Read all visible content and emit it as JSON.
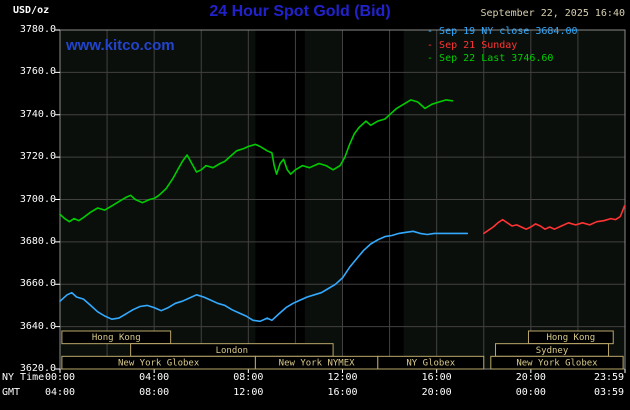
{
  "header": {
    "units_label": "USD/oz",
    "title": "24 Hour Spot Gold (Bid)",
    "datetime": "September 22, 2025 16:40",
    "watermark": "www.kitco.com"
  },
  "legend": [
    {
      "marker": "-",
      "label": "Sep 19 NY close 3684.00",
      "color": "#33aaff"
    },
    {
      "marker": "-",
      "label": "Sep 21 Sunday",
      "color": "#ff3333"
    },
    {
      "marker": "-",
      "label": "Sep 22 Last 3746.60",
      "color": "#00cc00"
    }
  ],
  "axes": {
    "y_ticks": [
      "3780.0",
      "3760.0",
      "3740.0",
      "3720.0",
      "3700.0",
      "3680.0",
      "3660.0",
      "3640.0",
      "3620.0"
    ],
    "tick_hours": [
      0,
      4,
      8,
      12,
      16,
      20,
      24
    ],
    "x_rows": [
      {
        "label": "NY Time",
        "ticks": [
          "00:00",
          "04:00",
          "08:00",
          "12:00",
          "16:00",
          "20:00",
          "23:59"
        ]
      },
      {
        "label": "GMT",
        "ticks": [
          "04:00",
          "08:00",
          "12:00",
          "16:00",
          "20:00",
          "00:00",
          "03:59"
        ]
      }
    ]
  },
  "chart_data": {
    "type": "line",
    "title": "24 Hour Spot Gold (Bid)",
    "ylabel": "USD/oz",
    "x_unit": "hour (NY time)",
    "xlim": [
      0,
      24
    ],
    "ylim": [
      3620,
      3780
    ],
    "y_step": 20,
    "grid": true,
    "legend_position": "top-right",
    "series": [
      {
        "id": "sep19",
        "name": "Sep 19 NY close 3684.00",
        "color": "#33aaff",
        "points": [
          [
            0,
            3652
          ],
          [
            0.3,
            3655
          ],
          [
            0.5,
            3656
          ],
          [
            0.7,
            3654
          ],
          [
            1,
            3653
          ],
          [
            1.3,
            3650
          ],
          [
            1.6,
            3647
          ],
          [
            1.9,
            3645
          ],
          [
            2.2,
            3643.5
          ],
          [
            2.5,
            3644
          ],
          [
            2.8,
            3646
          ],
          [
            3.1,
            3648
          ],
          [
            3.4,
            3649.5
          ],
          [
            3.7,
            3650
          ],
          [
            4,
            3649
          ],
          [
            4.3,
            3647.5
          ],
          [
            4.6,
            3649
          ],
          [
            4.9,
            3651
          ],
          [
            5.2,
            3652
          ],
          [
            5.5,
            3653.5
          ],
          [
            5.8,
            3655
          ],
          [
            6.1,
            3654
          ],
          [
            6.4,
            3652.5
          ],
          [
            6.7,
            3651
          ],
          [
            7,
            3650
          ],
          [
            7.3,
            3648
          ],
          [
            7.6,
            3646.5
          ],
          [
            7.9,
            3645
          ],
          [
            8.2,
            3643
          ],
          [
            8.5,
            3642.5
          ],
          [
            8.8,
            3644
          ],
          [
            9,
            3643
          ],
          [
            9.3,
            3646
          ],
          [
            9.6,
            3649
          ],
          [
            9.9,
            3651
          ],
          [
            10.2,
            3652.5
          ],
          [
            10.5,
            3654
          ],
          [
            10.8,
            3655
          ],
          [
            11.1,
            3656
          ],
          [
            11.4,
            3658
          ],
          [
            11.7,
            3660
          ],
          [
            12,
            3663
          ],
          [
            12.3,
            3668
          ],
          [
            12.6,
            3672
          ],
          [
            12.9,
            3676
          ],
          [
            13.2,
            3679
          ],
          [
            13.5,
            3681
          ],
          [
            13.8,
            3682.5
          ],
          [
            14.1,
            3683
          ],
          [
            14.4,
            3684
          ],
          [
            14.7,
            3684.5
          ],
          [
            15,
            3685
          ],
          [
            15.3,
            3684
          ],
          [
            15.6,
            3683.5
          ],
          [
            15.9,
            3684
          ],
          [
            16.2,
            3684
          ],
          [
            16.5,
            3684
          ],
          [
            17,
            3684
          ],
          [
            17.3,
            3684
          ]
        ]
      },
      {
        "id": "sep21",
        "name": "Sep 21 Sunday",
        "color": "#ff3333",
        "points": [
          [
            18,
            3684
          ],
          [
            18.2,
            3685.5
          ],
          [
            18.4,
            3687
          ],
          [
            18.6,
            3689
          ],
          [
            18.8,
            3690.5
          ],
          [
            19,
            3689
          ],
          [
            19.2,
            3687.5
          ],
          [
            19.4,
            3688
          ],
          [
            19.6,
            3687
          ],
          [
            19.8,
            3686
          ],
          [
            20,
            3687
          ],
          [
            20.2,
            3688.5
          ],
          [
            20.4,
            3687.5
          ],
          [
            20.6,
            3686
          ],
          [
            20.8,
            3687
          ],
          [
            21,
            3686
          ],
          [
            21.3,
            3687.5
          ],
          [
            21.6,
            3689
          ],
          [
            21.9,
            3688
          ],
          [
            22.2,
            3689
          ],
          [
            22.5,
            3688
          ],
          [
            22.8,
            3689.5
          ],
          [
            23.1,
            3690
          ],
          [
            23.4,
            3691
          ],
          [
            23.6,
            3690.5
          ],
          [
            23.8,
            3692
          ],
          [
            23.98,
            3697
          ]
        ]
      },
      {
        "id": "sep22",
        "name": "Sep 22 Last 3746.60",
        "color": "#00cc00",
        "points": [
          [
            0,
            3693
          ],
          [
            0.2,
            3691
          ],
          [
            0.4,
            3689.5
          ],
          [
            0.6,
            3691
          ],
          [
            0.8,
            3690
          ],
          [
            1,
            3691.5
          ],
          [
            1.3,
            3694
          ],
          [
            1.6,
            3696
          ],
          [
            1.9,
            3695
          ],
          [
            2.2,
            3697
          ],
          [
            2.5,
            3699
          ],
          [
            2.8,
            3701
          ],
          [
            3,
            3702
          ],
          [
            3.2,
            3700
          ],
          [
            3.5,
            3698.5
          ],
          [
            3.8,
            3700
          ],
          [
            4,
            3700.5
          ],
          [
            4.2,
            3702
          ],
          [
            4.5,
            3705
          ],
          [
            4.8,
            3710
          ],
          [
            5,
            3714
          ],
          [
            5.2,
            3718
          ],
          [
            5.4,
            3721
          ],
          [
            5.6,
            3717
          ],
          [
            5.8,
            3713
          ],
          [
            6,
            3714
          ],
          [
            6.2,
            3716
          ],
          [
            6.5,
            3715
          ],
          [
            6.8,
            3717
          ],
          [
            7,
            3718
          ],
          [
            7.2,
            3720
          ],
          [
            7.5,
            3723
          ],
          [
            7.8,
            3724
          ],
          [
            8,
            3725
          ],
          [
            8.3,
            3726
          ],
          [
            8.5,
            3725
          ],
          [
            8.8,
            3723
          ],
          [
            9,
            3722
          ],
          [
            9.1,
            3716
          ],
          [
            9.2,
            3712
          ],
          [
            9.35,
            3717
          ],
          [
            9.5,
            3719
          ],
          [
            9.65,
            3714
          ],
          [
            9.8,
            3712
          ],
          [
            10,
            3714
          ],
          [
            10.3,
            3716
          ],
          [
            10.6,
            3715
          ],
          [
            11,
            3717
          ],
          [
            11.3,
            3716
          ],
          [
            11.6,
            3714
          ],
          [
            11.9,
            3716
          ],
          [
            12.1,
            3720
          ],
          [
            12.3,
            3726
          ],
          [
            12.5,
            3731
          ],
          [
            12.7,
            3734
          ],
          [
            13,
            3737
          ],
          [
            13.2,
            3735
          ],
          [
            13.5,
            3737
          ],
          [
            13.8,
            3738
          ],
          [
            14,
            3740
          ],
          [
            14.3,
            3743
          ],
          [
            14.6,
            3745
          ],
          [
            14.9,
            3747
          ],
          [
            15.2,
            3746
          ],
          [
            15.5,
            3743
          ],
          [
            15.8,
            3745
          ],
          [
            16.1,
            3746
          ],
          [
            16.4,
            3747
          ],
          [
            16.67,
            3746.6
          ]
        ]
      }
    ],
    "sessions": [
      {
        "label": "Hong Kong",
        "row": 0,
        "start": 0.08,
        "end": 4.7
      },
      {
        "label": "Hong Kong",
        "row": 0,
        "start": 19.9,
        "end": 23.5
      },
      {
        "label": "London",
        "row": 1,
        "start": 3.0,
        "end": 11.6
      },
      {
        "label": "Sydney",
        "row": 1,
        "start": 18.5,
        "end": 23.3
      },
      {
        "label": "New York Globex",
        "row": 2,
        "start": 0.08,
        "end": 8.3
      },
      {
        "label": "New York NYMEX",
        "row": 2,
        "start": 8.3,
        "end": 13.5
      },
      {
        "label": "NY Globex",
        "row": 2,
        "start": 13.5,
        "end": 18.0
      },
      {
        "label": "New York Globex",
        "row": 2,
        "start": 18.3,
        "end": 23.92
      }
    ],
    "bands": [
      [
        8.3,
        10.4
      ],
      [
        12.0,
        14.6
      ]
    ],
    "colors": {
      "plot_bg": "#0b0f0b",
      "band": "#000000",
      "grid": "#414141",
      "frame": "#8a8a8a",
      "session_box": "#baa76a",
      "session_text": "#d8c98a",
      "tick": "#ffffff"
    }
  }
}
